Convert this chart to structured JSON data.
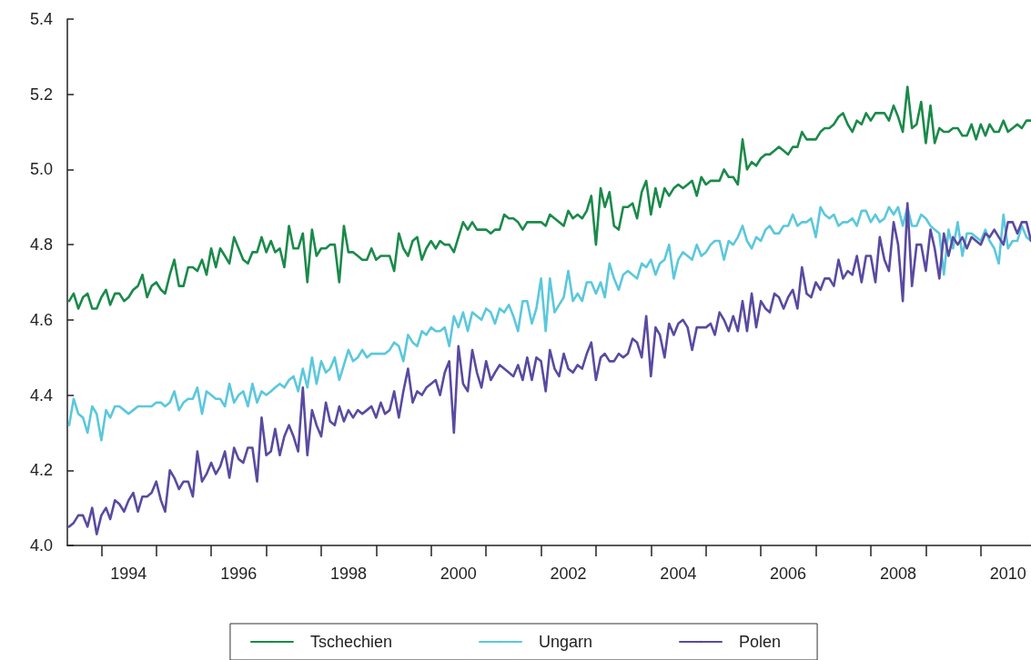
{
  "chart_data": {
    "type": "line",
    "legend": "bottom",
    "marker": "none",
    "line_style": "solid",
    "xlim": [
      "1993-05-20",
      "2010-12-01"
    ],
    "xticks": [
      {
        "value": "1994-01-01",
        "label": null
      },
      {
        "value": "1994-07-01",
        "label": "1994"
      },
      {
        "value": "1995-01-01",
        "label": null
      },
      {
        "value": "1996-01-01",
        "label": null
      },
      {
        "value": "1996-07-01",
        "label": "1996"
      },
      {
        "value": "1997-01-01",
        "label": null
      },
      {
        "value": "1998-01-01",
        "label": null
      },
      {
        "value": "1998-07-01",
        "label": "1998"
      },
      {
        "value": "1999-01-01",
        "label": null
      },
      {
        "value": "2000-01-01",
        "label": null
      },
      {
        "value": "2000-07-01",
        "label": "2000"
      },
      {
        "value": "2001-01-01",
        "label": null
      },
      {
        "value": "2002-01-01",
        "label": null
      },
      {
        "value": "2002-07-01",
        "label": "2002"
      },
      {
        "value": "2003-01-01",
        "label": null
      },
      {
        "value": "2004-01-01",
        "label": null
      },
      {
        "value": "2004-07-01",
        "label": "2004"
      },
      {
        "value": "2005-01-01",
        "label": null
      },
      {
        "value": "2006-01-01",
        "label": null
      },
      {
        "value": "2006-07-01",
        "label": "2006"
      },
      {
        "value": "2007-01-01",
        "label": null
      },
      {
        "value": "2008-01-01",
        "label": null
      },
      {
        "value": "2008-07-01",
        "label": "2008"
      },
      {
        "value": "2009-01-01",
        "label": null
      },
      {
        "value": "2010-01-01",
        "label": null
      },
      {
        "value": "2010-07-01",
        "label": "2010"
      }
    ],
    "ylim": [
      4.0,
      5.4
    ],
    "yticks": [
      {
        "value": 4.0,
        "label": "4.0"
      },
      4.2,
      4.4,
      4.6,
      4.8,
      {
        "value": 5.0,
        "label": "5.0"
      },
      5.2,
      5.4
    ],
    "x": [
      "1993-06",
      "1993-07",
      "1993-08",
      "1993-09",
      "1993-10",
      "1993-11",
      "1993-12",
      "1994-01",
      "1994-02",
      "1994-03",
      "1994-04",
      "1994-05",
      "1994-06",
      "1994-07",
      "1994-08",
      "1994-09",
      "1994-10",
      "1994-11",
      "1994-12",
      "1995-01",
      "1995-02",
      "1995-03",
      "1995-04",
      "1995-05",
      "1995-06",
      "1995-07",
      "1995-08",
      "1995-09",
      "1995-10",
      "1995-11",
      "1995-12",
      "1996-01",
      "1996-02",
      "1996-03",
      "1996-04",
      "1996-05",
      "1996-06",
      "1996-07",
      "1996-08",
      "1996-09",
      "1996-10",
      "1996-11",
      "1996-12",
      "1997-01",
      "1997-02",
      "1997-03",
      "1997-04",
      "1997-05",
      "1997-06",
      "1997-07",
      "1997-08",
      "1997-09",
      "1997-10",
      "1997-11",
      "1997-12",
      "1998-01",
      "1998-02",
      "1998-03",
      "1998-04",
      "1998-05",
      "1998-06",
      "1998-07",
      "1998-08",
      "1998-09",
      "1998-10",
      "1998-11",
      "1998-12",
      "1999-01",
      "1999-02",
      "1999-03",
      "1999-04",
      "1999-05",
      "1999-06",
      "1999-07",
      "1999-08",
      "1999-09",
      "1999-10",
      "1999-11",
      "1999-12",
      "2000-01",
      "2000-02",
      "2000-03",
      "2000-04",
      "2000-05",
      "2000-06",
      "2000-07",
      "2000-08",
      "2000-09",
      "2000-10",
      "2000-11",
      "2000-12",
      "2001-01",
      "2001-02",
      "2001-03",
      "2001-04",
      "2001-05",
      "2001-06",
      "2001-07",
      "2001-08",
      "2001-09",
      "2001-10",
      "2001-11",
      "2001-12",
      "2002-01",
      "2002-02",
      "2002-03",
      "2002-04",
      "2002-05",
      "2002-06",
      "2002-07",
      "2002-08",
      "2002-09",
      "2002-10",
      "2002-11",
      "2002-12",
      "2003-01",
      "2003-02",
      "2003-03",
      "2003-04",
      "2003-05",
      "2003-06",
      "2003-07",
      "2003-08",
      "2003-09",
      "2003-10",
      "2003-11",
      "2003-12",
      "2004-01",
      "2004-02",
      "2004-03",
      "2004-04",
      "2004-05",
      "2004-06",
      "2004-07",
      "2004-08",
      "2004-09",
      "2004-10",
      "2004-11",
      "2004-12",
      "2005-01",
      "2005-02",
      "2005-03",
      "2005-04",
      "2005-05",
      "2005-06",
      "2005-07",
      "2005-08",
      "2005-09",
      "2005-10",
      "2005-11",
      "2005-12",
      "2006-01",
      "2006-02",
      "2006-03",
      "2006-04",
      "2006-05",
      "2006-06",
      "2006-07",
      "2006-08",
      "2006-09",
      "2006-10",
      "2006-11",
      "2006-12",
      "2007-01",
      "2007-02",
      "2007-03",
      "2007-04",
      "2007-05",
      "2007-06",
      "2007-07",
      "2007-08",
      "2007-09",
      "2007-10",
      "2007-11",
      "2007-12",
      "2008-01",
      "2008-02",
      "2008-03",
      "2008-04",
      "2008-05",
      "2008-06",
      "2008-07",
      "2008-08",
      "2008-09",
      "2008-10",
      "2008-11",
      "2008-12",
      "2009-01",
      "2009-02",
      "2009-03",
      "2009-04",
      "2009-05",
      "2009-06",
      "2009-07",
      "2009-08",
      "2009-09",
      "2009-10",
      "2009-11",
      "2009-12",
      "2010-01",
      "2010-02",
      "2010-03",
      "2010-04",
      "2010-05",
      "2010-06",
      "2010-07",
      "2010-08",
      "2010-09",
      "2010-10",
      "2010-11",
      "2010-12"
    ],
    "series": [
      {
        "name": "Tschechien",
        "color": "#1a8a4a",
        "values": [
          4.65,
          4.67,
          4.63,
          4.66,
          4.67,
          4.63,
          4.63,
          4.66,
          4.68,
          4.64,
          4.67,
          4.67,
          4.65,
          4.66,
          4.68,
          4.69,
          4.72,
          4.66,
          4.69,
          4.7,
          4.68,
          4.67,
          4.72,
          4.76,
          4.69,
          4.69,
          4.74,
          4.74,
          4.73,
          4.76,
          4.72,
          4.79,
          4.74,
          4.79,
          4.77,
          4.75,
          4.82,
          4.79,
          4.76,
          4.75,
          4.78,
          4.78,
          4.82,
          4.78,
          4.81,
          4.78,
          4.79,
          4.74,
          4.85,
          4.79,
          4.79,
          4.83,
          4.7,
          4.84,
          4.77,
          4.79,
          4.79,
          4.8,
          4.8,
          4.7,
          4.85,
          4.78,
          4.78,
          4.77,
          4.76,
          4.76,
          4.79,
          4.76,
          4.77,
          4.77,
          4.77,
          4.73,
          4.83,
          4.79,
          4.77,
          4.81,
          4.82,
          4.76,
          4.79,
          4.81,
          4.79,
          4.81,
          4.8,
          4.8,
          4.78,
          4.82,
          4.86,
          4.84,
          4.86,
          4.84,
          4.84,
          4.84,
          4.83,
          4.84,
          4.84,
          4.88,
          4.87,
          4.87,
          4.86,
          4.84,
          4.86,
          4.86,
          4.86,
          4.86,
          4.85,
          4.88,
          4.87,
          4.86,
          4.85,
          4.89,
          4.87,
          4.88,
          4.87,
          4.89,
          4.93,
          4.8,
          4.95,
          4.9,
          4.94,
          4.85,
          4.84,
          4.9,
          4.9,
          4.91,
          4.87,
          4.94,
          4.97,
          4.88,
          4.95,
          4.9,
          4.95,
          4.93,
          4.95,
          4.96,
          4.95,
          4.96,
          4.97,
          4.93,
          4.98,
          4.96,
          4.97,
          4.97,
          4.97,
          5.0,
          4.98,
          4.98,
          4.96,
          5.08,
          5.0,
          5.02,
          5.01,
          5.03,
          5.04,
          5.04,
          5.05,
          5.06,
          5.05,
          5.04,
          5.06,
          5.06,
          5.1,
          5.08,
          5.08,
          5.08,
          5.1,
          5.11,
          5.11,
          5.12,
          5.14,
          5.15,
          5.12,
          5.1,
          5.13,
          5.12,
          5.15,
          5.13,
          5.15,
          5.15,
          5.15,
          5.13,
          5.17,
          5.14,
          5.1,
          5.22,
          5.11,
          5.12,
          5.18,
          5.07,
          5.17,
          5.07,
          5.11,
          5.1,
          5.1,
          5.11,
          5.11,
          5.09,
          5.09,
          5.12,
          5.08,
          5.12,
          5.09,
          5.12,
          5.1,
          5.1,
          5.13,
          5.1,
          5.11,
          5.12,
          5.11,
          5.13,
          5.13
        ]
      },
      {
        "name": "Ungarn",
        "color": "#5bc8dc",
        "values": [
          4.32,
          4.39,
          4.35,
          4.34,
          4.3,
          4.37,
          4.35,
          4.28,
          4.36,
          4.34,
          4.37,
          4.37,
          4.36,
          4.35,
          4.36,
          4.37,
          4.37,
          4.37,
          4.37,
          4.38,
          4.38,
          4.37,
          4.38,
          4.41,
          4.36,
          4.38,
          4.39,
          4.39,
          4.42,
          4.35,
          4.41,
          4.4,
          4.39,
          4.39,
          4.37,
          4.43,
          4.38,
          4.4,
          4.41,
          4.37,
          4.43,
          4.38,
          4.41,
          4.4,
          4.41,
          4.42,
          4.43,
          4.42,
          4.44,
          4.45,
          4.41,
          4.47,
          4.42,
          4.5,
          4.43,
          4.49,
          4.46,
          4.47,
          4.5,
          4.44,
          4.48,
          4.52,
          4.49,
          4.5,
          4.52,
          4.5,
          4.51,
          4.51,
          4.51,
          4.51,
          4.52,
          4.54,
          4.53,
          4.49,
          4.56,
          4.54,
          4.53,
          4.57,
          4.56,
          4.58,
          4.57,
          4.57,
          4.58,
          4.53,
          4.61,
          4.58,
          4.62,
          4.57,
          4.62,
          4.61,
          4.6,
          4.63,
          4.62,
          4.59,
          4.63,
          4.62,
          4.64,
          4.61,
          4.57,
          4.65,
          4.65,
          4.59,
          4.63,
          4.71,
          4.57,
          4.71,
          4.62,
          4.64,
          4.66,
          4.73,
          4.65,
          4.67,
          4.65,
          4.7,
          4.7,
          4.67,
          4.7,
          4.66,
          4.75,
          4.71,
          4.68,
          4.72,
          4.73,
          4.72,
          4.71,
          4.75,
          4.74,
          4.76,
          4.72,
          4.75,
          4.76,
          4.8,
          4.71,
          4.76,
          4.78,
          4.77,
          4.76,
          4.8,
          4.77,
          4.78,
          4.8,
          4.81,
          4.81,
          4.76,
          4.81,
          4.8,
          4.82,
          4.85,
          4.81,
          4.79,
          4.82,
          4.81,
          4.84,
          4.85,
          4.83,
          4.83,
          4.85,
          4.85,
          4.88,
          4.85,
          4.86,
          4.86,
          4.87,
          4.82,
          4.9,
          4.88,
          4.87,
          4.88,
          4.85,
          4.86,
          4.86,
          4.87,
          4.85,
          4.89,
          4.89,
          4.86,
          4.88,
          4.86,
          4.87,
          4.9,
          4.88,
          4.9,
          4.85,
          4.9,
          4.85,
          4.85,
          4.88,
          4.87,
          4.85,
          4.84,
          4.83,
          4.72,
          4.84,
          4.79,
          4.86,
          4.77,
          4.83,
          4.83,
          4.82,
          4.81,
          4.84,
          4.81,
          4.79,
          4.75,
          4.88,
          4.79,
          4.81,
          4.81,
          4.85,
          4.82,
          4.81
        ]
      },
      {
        "name": "Polen",
        "color": "#5a4aa0",
        "values": [
          4.05,
          4.06,
          4.08,
          4.08,
          4.05,
          4.1,
          4.03,
          4.08,
          4.1,
          4.07,
          4.12,
          4.11,
          4.09,
          4.12,
          4.14,
          4.09,
          4.13,
          4.13,
          4.14,
          4.17,
          4.12,
          4.09,
          4.2,
          4.18,
          4.15,
          4.17,
          4.17,
          4.13,
          4.25,
          4.17,
          4.19,
          4.22,
          4.19,
          4.21,
          4.25,
          4.18,
          4.26,
          4.23,
          4.22,
          4.26,
          4.26,
          4.17,
          4.34,
          4.24,
          4.25,
          4.31,
          4.24,
          4.29,
          4.32,
          4.29,
          4.25,
          4.42,
          4.24,
          4.36,
          4.32,
          4.29,
          4.38,
          4.33,
          4.32,
          4.37,
          4.33,
          4.36,
          4.34,
          4.36,
          4.35,
          4.36,
          4.37,
          4.34,
          4.38,
          4.35,
          4.36,
          4.41,
          4.34,
          4.41,
          4.47,
          4.38,
          4.41,
          4.4,
          4.42,
          4.43,
          4.44,
          4.4,
          4.46,
          4.49,
          4.3,
          4.53,
          4.43,
          4.41,
          4.52,
          4.46,
          4.42,
          4.49,
          4.44,
          4.46,
          4.48,
          4.47,
          4.46,
          4.45,
          4.48,
          4.44,
          4.5,
          4.44,
          4.5,
          4.49,
          4.41,
          4.52,
          4.47,
          4.45,
          4.51,
          4.47,
          4.46,
          4.48,
          4.47,
          4.51,
          4.54,
          4.44,
          4.5,
          4.51,
          4.49,
          4.49,
          4.51,
          4.5,
          4.51,
          4.55,
          4.54,
          4.5,
          4.61,
          4.45,
          4.58,
          4.56,
          4.5,
          4.59,
          4.56,
          4.59,
          4.6,
          4.58,
          4.52,
          4.58,
          4.58,
          4.58,
          4.59,
          4.56,
          4.62,
          4.6,
          4.57,
          4.61,
          4.57,
          4.65,
          4.57,
          4.67,
          4.58,
          4.65,
          4.63,
          4.62,
          4.67,
          4.66,
          4.63,
          4.66,
          4.68,
          4.63,
          4.74,
          4.67,
          4.66,
          4.7,
          4.68,
          4.71,
          4.71,
          4.69,
          4.76,
          4.71,
          4.73,
          4.72,
          4.77,
          4.7,
          4.77,
          4.77,
          4.7,
          4.82,
          4.76,
          4.73,
          4.86,
          4.8,
          4.65,
          4.91,
          4.69,
          4.8,
          4.8,
          4.73,
          4.84,
          4.79,
          4.71,
          4.83,
          4.77,
          4.82,
          4.8,
          4.82,
          4.79,
          4.82,
          4.81,
          4.8,
          4.83,
          4.82,
          4.84,
          4.82,
          4.8,
          4.86,
          4.86,
          4.83,
          4.86,
          4.86,
          4.81
        ]
      }
    ]
  }
}
